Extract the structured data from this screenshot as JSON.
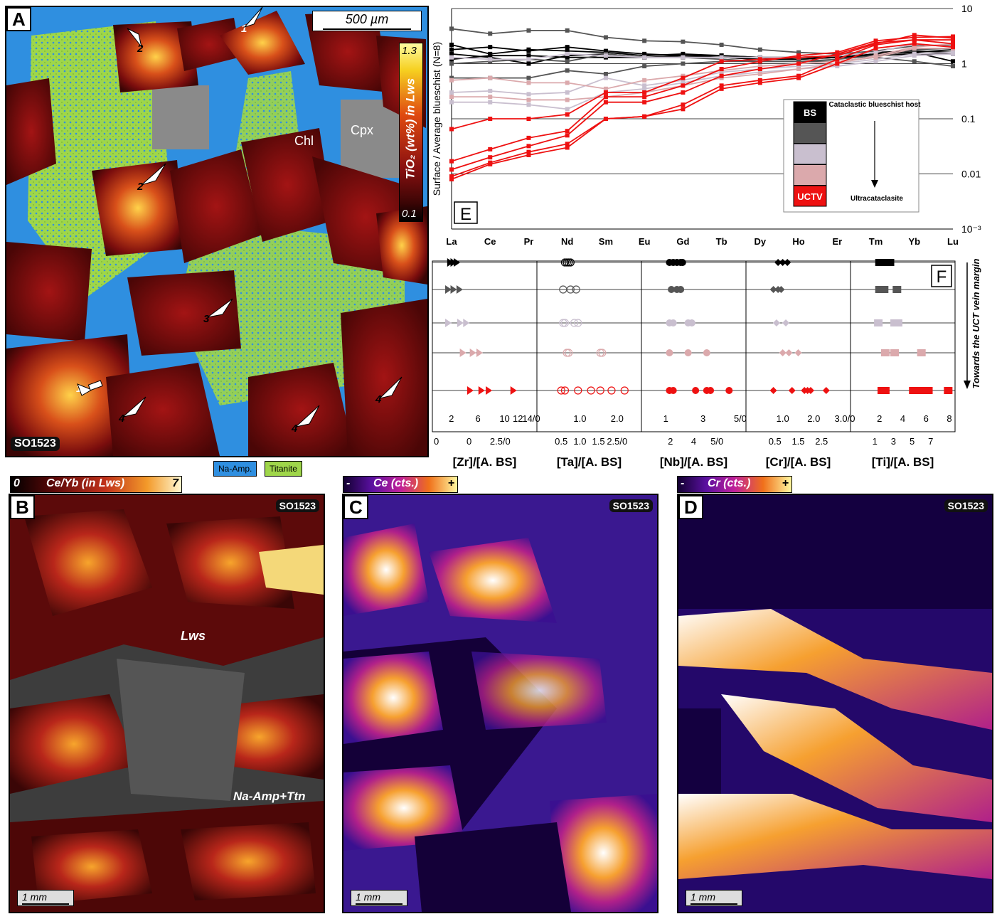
{
  "panels": {
    "A": {
      "label": "A",
      "sample": "SO1523",
      "scale": "500 µm",
      "colorbar": {
        "title": "TiO₂ (wt%) in Lws",
        "max": "1.3",
        "min": "0.1"
      },
      "minerals": [
        "Chl",
        "Cpx"
      ],
      "arrows": [
        "1",
        "2",
        "2",
        "3",
        "4",
        "4",
        "4",
        "1"
      ],
      "legend": [
        {
          "label": "Na-Amp.",
          "color": "#2f8fe0"
        },
        {
          "label": "Titanite",
          "color": "#9fd64a"
        }
      ]
    },
    "B": {
      "label": "B",
      "sample": "SO1523",
      "scale": "1 mm",
      "cbar_min": "0",
      "cbar_title": "Ce/Yb (in Lws)",
      "cbar_max": "7",
      "tags": [
        "Lws",
        "Na-Amp+Ttn"
      ]
    },
    "C": {
      "label": "C",
      "sample": "SO1523",
      "scale": "1 mm",
      "cbar_min": "-",
      "cbar_title": "Ce (cts.)",
      "cbar_max": "+"
    },
    "D": {
      "label": "D",
      "sample": "SO1523",
      "scale": "1 mm",
      "cbar_min": "-",
      "cbar_title": "Cr (cts.)",
      "cbar_max": "+"
    }
  },
  "chart_data": [
    {
      "panel": "E",
      "type": "line",
      "ylabel": "Surface / Average blueschist (N=8)",
      "yscale": "log",
      "ylim": [
        0.001,
        10
      ],
      "yticks": [
        "10",
        "1",
        "0.1",
        "0.01",
        "10⁻³"
      ],
      "categories": [
        "La",
        "Ce",
        "Pr",
        "Nd",
        "Sm",
        "Eu",
        "Gd",
        "Tb",
        "Dy",
        "Ho",
        "Er",
        "Tm",
        "Yb",
        "Lu"
      ],
      "legend": {
        "items": [
          "BS",
          "",
          "",
          "",
          "UCTV"
        ],
        "colors": [
          "#000000",
          "#555555",
          "#c9bfcf",
          "#dba9ac",
          "#ee1111"
        ],
        "top_text": "Cataclastic blueschist host",
        "bottom_text": "Ultracataclasite"
      },
      "series": [
        {
          "color": "#000000",
          "values": [
            2.2,
            1.5,
            1.8,
            1.7,
            1.6,
            1.4,
            1.5,
            1.4,
            1.3,
            1.2,
            1.3,
            1.5,
            1.6,
            1.1
          ]
        },
        {
          "color": "#000000",
          "values": [
            1.8,
            2.0,
            1.7,
            2.0,
            1.7,
            1.5,
            1.4,
            1.4,
            1.3,
            1.3,
            1.4,
            1.6,
            1.7,
            1.6
          ]
        },
        {
          "color": "#000000",
          "values": [
            1.5,
            1.3,
            1.0,
            1.4,
            1.5,
            1.3,
            1.3,
            1.3,
            1.2,
            1.3,
            1.3,
            1.5,
            1.6,
            1.8
          ]
        },
        {
          "color": "#000000",
          "values": [
            1.2,
            1.4,
            1.4,
            1.3,
            1.3,
            1.3,
            1.4,
            1.3,
            1.2,
            1.2,
            1.3,
            1.4,
            1.5,
            1.5
          ]
        },
        {
          "color": "#555555",
          "values": [
            4.3,
            3.5,
            4.0,
            4.0,
            3.0,
            2.6,
            2.5,
            2.2,
            1.8,
            1.6,
            1.5,
            1.7,
            2.1,
            2.2
          ]
        },
        {
          "color": "#555555",
          "values": [
            0.55,
            0.55,
            0.55,
            0.75,
            0.65,
            0.9,
            1.0,
            1.1,
            1.1,
            1.1,
            1.2,
            1.4,
            1.8,
            1.9
          ]
        },
        {
          "color": "#555555",
          "values": [
            1.0,
            1.1,
            1.2,
            1.1,
            1.5,
            1.3,
            1.3,
            1.2,
            1.1,
            1.1,
            1.1,
            1.3,
            1.1,
            0.9
          ]
        },
        {
          "color": "#c9bfcf",
          "values": [
            1.3,
            1.2,
            1.2,
            1.5,
            1.4,
            1.3,
            1.3,
            1.3,
            1.3,
            1.3,
            1.4,
            1.6,
            2.3,
            2.0
          ]
        },
        {
          "color": "#c9bfcf",
          "values": [
            0.3,
            0.32,
            0.28,
            0.3,
            0.55,
            0.4,
            0.5,
            0.7,
            0.8,
            0.9,
            1.0,
            1.2,
            1.5,
            1.6
          ]
        },
        {
          "color": "#c9bfcf",
          "values": [
            0.2,
            0.2,
            0.18,
            0.15,
            0.3,
            0.35,
            0.45,
            0.6,
            0.7,
            0.8,
            0.9,
            1.1,
            1.4,
            1.5
          ]
        },
        {
          "color": "#dba9ac",
          "values": [
            0.5,
            0.55,
            0.45,
            0.45,
            0.35,
            0.5,
            0.6,
            0.75,
            0.9,
            1.0,
            1.1,
            1.3,
            1.9,
            1.9
          ]
        },
        {
          "color": "#dba9ac",
          "values": [
            0.25,
            0.25,
            0.22,
            0.22,
            0.25,
            0.3,
            0.4,
            0.55,
            0.65,
            0.8,
            1.0,
            1.4,
            2.0,
            2.3
          ]
        },
        {
          "color": "#ee1111",
          "values": [
            0.065,
            0.1,
            0.1,
            0.12,
            0.3,
            0.3,
            0.55,
            1.1,
            1.2,
            1.3,
            1.4,
            2.3,
            3.3,
            2.9
          ]
        },
        {
          "color": "#ee1111",
          "values": [
            0.017,
            0.028,
            0.045,
            0.06,
            0.25,
            0.25,
            0.4,
            0.8,
            1.1,
            1.4,
            1.6,
            2.6,
            3.0,
            3.1
          ]
        },
        {
          "color": "#ee1111",
          "values": [
            0.012,
            0.02,
            0.032,
            0.05,
            0.2,
            0.2,
            0.3,
            0.6,
            0.8,
            1.0,
            1.5,
            2.4,
            2.7,
            2.7
          ]
        },
        {
          "color": "#ee1111",
          "values": [
            0.009,
            0.016,
            0.025,
            0.035,
            0.1,
            0.11,
            0.18,
            0.4,
            0.5,
            0.6,
            1.2,
            2.2,
            2.7,
            2.3
          ]
        },
        {
          "color": "#ee1111",
          "values": [
            0.008,
            0.015,
            0.022,
            0.03,
            0.1,
            0.11,
            0.15,
            0.35,
            0.45,
            0.55,
            1.0,
            1.9,
            2.3,
            2.0
          ]
        }
      ]
    },
    {
      "panel": "F",
      "type": "scatter",
      "side_label": "Towards the UCT vein margin",
      "row_colors": [
        "#000000",
        "#555555",
        "#c9bfcf",
        "#dba9ac",
        "#ee1111"
      ],
      "groups": [
        {
          "label": "[Zr]/[A. BS]",
          "marker": "triangle",
          "xmin": 0,
          "xmax": 14,
          "bottom_ticks": [
            {
              "v": 0,
              "t": "0"
            },
            {
              "v": 2.5,
              "t": "2.5/0"
            }
          ],
          "inner_ticks": [
            {
              "v": 2,
              "t": "2"
            },
            {
              "v": 6,
              "t": "6"
            },
            {
              "v": 10,
              "t": "10"
            },
            {
              "v": 12,
              "t": "12"
            },
            {
              "v": 14,
              "t": "14/0"
            }
          ],
          "axis_ticks": [
            "0",
            "2.5/0"
          ],
          "rows": [
            [
              1.8,
              2.3,
              2.8
            ],
            [
              1.5,
              2.3,
              3.2
            ],
            [
              1.5,
              3.3,
              4.2
            ],
            [
              3.7,
              5.2,
              6.2
            ],
            [
              4.8,
              6.5,
              7.6,
              11.3
            ]
          ]
        },
        {
          "label": "[Ta]/[A. BS]",
          "marker": "circle",
          "xmin": 0,
          "xmax": 2.5,
          "inner_ticks": [
            {
              "v": 1.0,
              "t": "1.0"
            },
            {
              "v": 2.0,
              "t": "2.0"
            }
          ],
          "axis_ticks": [
            "0.5",
            "1.0",
            "1.5",
            "2.5/0"
          ],
          "rows": [
            [
              0.6,
              0.65,
              0.7,
              0.75
            ],
            [
              0.55,
              0.75,
              0.9
            ],
            [
              0.55,
              0.6,
              0.85,
              0.95
            ],
            [
              0.65,
              0.7,
              1.55,
              1.6
            ],
            [
              0.5,
              0.6,
              0.95,
              1.3,
              1.55,
              1.85,
              2.2
            ]
          ]
        },
        {
          "label": "[Nb]/[A. BS]",
          "marker": "dot",
          "xmin": 0,
          "xmax": 5,
          "inner_ticks": [
            {
              "v": 1,
              "t": "1"
            },
            {
              "v": 3,
              "t": "3"
            },
            {
              "v": 5,
              "t": "5/0"
            }
          ],
          "axis_ticks": [
            "2",
            "4",
            "5/0"
          ],
          "rows": [
            [
              1.2,
              1.4,
              1.6,
              1.8,
              1.9
            ],
            [
              1.3,
              1.6,
              1.8
            ],
            [
              1.2,
              1.4,
              2.2,
              2.4
            ],
            [
              1.2,
              2.2,
              3.2
            ],
            [
              1.2,
              1.4,
              2.6,
              3.2,
              3.4,
              4.4
            ]
          ]
        },
        {
          "label": "[Cr]/[A. BS]",
          "marker": "diamond",
          "xmin": 0,
          "xmax": 3,
          "inner_ticks": [
            {
              "v": 1.0,
              "t": "1.0"
            },
            {
              "v": 2.0,
              "t": "2.0"
            },
            {
              "v": 3.0,
              "t": "3.0/0"
            }
          ],
          "axis_ticks": [
            "0.5",
            "1.5",
            "2.5"
          ],
          "rows": [
            [
              0.85,
              1.0,
              1.15
            ],
            [
              0.7,
              0.85,
              0.95
            ],
            [
              0.8,
              1.1
            ],
            [
              1.0,
              1.2,
              1.5
            ],
            [
              0.7,
              1.3,
              1.7,
              1.8,
              1.9,
              2.4
            ]
          ]
        },
        {
          "label": "[Ti]/[A. BS]",
          "marker": "square",
          "xmin": 0,
          "xmax": 8,
          "inner_ticks": [
            {
              "v": 2,
              "t": "2"
            },
            {
              "v": 4,
              "t": "4"
            },
            {
              "v": 6,
              "t": "6"
            },
            {
              "v": 8,
              "t": "8"
            }
          ],
          "axis_ticks": [
            "1",
            "3",
            "5",
            "7"
          ],
          "rows": [
            [
              2.0,
              2.3,
              2.6,
              2.9
            ],
            [
              2.0,
              2.4,
              3.5
            ],
            [
              1.9,
              3.3,
              3.6
            ],
            [
              2.5,
              3.3,
              5.6
            ],
            [
              2.2,
              2.5,
              4.9,
              5.6,
              6.2,
              7.9
            ]
          ]
        }
      ]
    }
  ]
}
